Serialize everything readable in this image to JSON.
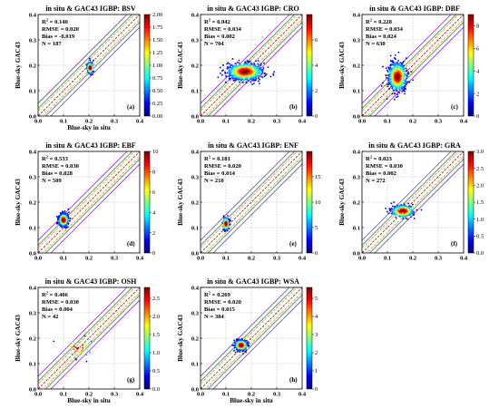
{
  "figure": {
    "colormap": [
      "#00007f",
      "#0000ff",
      "#007fff",
      "#00ffff",
      "#7fff7f",
      "#ffff00",
      "#ff7f00",
      "#ff0000",
      "#7f0000"
    ],
    "line_colors": {
      "one_to_one": "#c00000",
      "inner_bounds": "#d4a000",
      "mid_bounds": "#2e8b57",
      "outer_bounds": "#9b30d9"
    }
  },
  "chart_data": [
    {
      "type": "scatter",
      "title": "in situ & GAC43   IGBP: BSV",
      "xlabel": "Blue-sky in situ",
      "ylabel": "Blue-sky GAC43",
      "xlim": [
        0,
        0.4
      ],
      "ylim": [
        0,
        0.4
      ],
      "xticks": [
        "0.0",
        "0.1",
        "0.2",
        "0.3",
        "0.4"
      ],
      "yticks": [
        "0.0",
        "0.1",
        "0.2",
        "0.3",
        "0.4"
      ],
      "stats": {
        "r2_label": "R",
        "r2_value": "= 0.140",
        "rmse": "RMSE = 0.020",
        "bias": "Bias = -0.019",
        "n": "N = 187"
      },
      "panel_label": "(a)",
      "colorbar": {
        "max": 2.0,
        "ticks": [
          "0.00",
          "0.25",
          "0.50",
          "0.75",
          "1.00",
          "1.25",
          "1.50",
          "1.75",
          "2.00"
        ]
      },
      "cluster": {
        "cx": 0.205,
        "cy": 0.19,
        "sx": 0.006,
        "sy": 0.011,
        "n": 187,
        "peak": 2.0
      }
    },
    {
      "type": "scatter",
      "title": "in situ & GAC43   IGBP: CRO",
      "xlabel": "",
      "ylabel": "Blue-sky GAC43",
      "xlim": [
        0,
        0.4
      ],
      "ylim": [
        0,
        0.4
      ],
      "xticks": [
        "0.0",
        "0.1",
        "0.2",
        "0.3",
        "0.4"
      ],
      "yticks": [
        "0.0",
        "0.1",
        "0.2",
        "0.3",
        "0.4"
      ],
      "stats": {
        "r2_label": "R",
        "r2_value": "= 0.042",
        "rmse": "RMSE = 0.034",
        "bias": "Bias = 0.002",
        "n": "N = 704"
      },
      "panel_label": "(b)",
      "colorbar": {
        "max": 8,
        "ticks": [
          "0",
          "2",
          "4",
          "6"
        ]
      },
      "cluster": {
        "cx": 0.175,
        "cy": 0.175,
        "sx": 0.035,
        "sy": 0.017,
        "n": 704,
        "peak": 8
      }
    },
    {
      "type": "scatter",
      "title": "in situ & GAC43   IGBP: DBF",
      "xlabel": "",
      "ylabel": "Blue-sky GAC43",
      "xlim": [
        0,
        0.4
      ],
      "ylim": [
        0,
        0.4
      ],
      "xticks": [
        "0.0",
        "0.1",
        "0.2",
        "0.3",
        "0.4"
      ],
      "yticks": [
        "0.0",
        "0.1",
        "0.2",
        "0.3",
        "0.4"
      ],
      "stats": {
        "r2_label": "R",
        "r2_value": "= 0.228",
        "rmse": "RMSE = 0.034",
        "bias": "Bias = 0.024",
        "n": "N = 630"
      },
      "panel_label": "(c)",
      "colorbar": {
        "max": 9,
        "ticks": [
          "0",
          "2",
          "4",
          "6",
          "8"
        ]
      },
      "cluster": {
        "cx": 0.14,
        "cy": 0.155,
        "sx": 0.018,
        "sy": 0.028,
        "n": 630,
        "peak": 9
      }
    },
    {
      "type": "scatter",
      "title": "in situ & GAC43   IGBP: EBF",
      "xlabel": "",
      "ylabel": "Blue-sky GAC43",
      "xlim": [
        0,
        0.4
      ],
      "ylim": [
        0,
        0.4
      ],
      "xticks": [
        "0.0",
        "0.1",
        "0.2",
        "0.3",
        "0.4"
      ],
      "yticks": [
        "0.0",
        "0.1",
        "0.2",
        "0.3",
        "0.4"
      ],
      "stats": {
        "r2_label": "R",
        "r2_value": "= 0.533",
        "rmse": "RMSE = 0.030",
        "bias": "Bias = 0.028",
        "n": "N = 509"
      },
      "panel_label": "(d)",
      "colorbar": {
        "max": 10,
        "ticks": [
          "0",
          "2",
          "4",
          "6",
          "8",
          "10"
        ]
      },
      "cluster": {
        "cx": 0.1,
        "cy": 0.13,
        "sx": 0.009,
        "sy": 0.012,
        "n": 509,
        "peak": 10
      }
    },
    {
      "type": "scatter",
      "title": "in situ & GAC43   IGBP: ENF",
      "xlabel": "",
      "ylabel": "Blue-sky GAC43",
      "xlim": [
        0,
        0.4
      ],
      "ylim": [
        0,
        0.4
      ],
      "xticks": [
        "0.0",
        "0.1",
        "0.2",
        "0.3",
        "0.4"
      ],
      "yticks": [
        "0.0",
        "0.1",
        "0.2",
        "0.3",
        "0.4"
      ],
      "stats": {
        "r2_label": "R",
        "r2_value": "= 0.181",
        "rmse": "RMSE = 0.020",
        "bias": "Bias = 0.014",
        "n": "N = 218"
      },
      "panel_label": "(e)",
      "colorbar": {
        "max": 20,
        "ticks": [
          "0",
          "5",
          "10",
          "15"
        ]
      },
      "cluster": {
        "cx": 0.1,
        "cy": 0.115,
        "sx": 0.006,
        "sy": 0.012,
        "n": 218,
        "peak": 20
      }
    },
    {
      "type": "scatter",
      "title": "in situ & GAC43   IGBP: GRA",
      "xlabel": "",
      "ylabel": "Blue-sky GAC43",
      "xlim": [
        0,
        0.4
      ],
      "ylim": [
        0,
        0.4
      ],
      "xticks": [
        "0.0",
        "0.1",
        "0.2",
        "0.3",
        "0.4"
      ],
      "yticks": [
        "0.0",
        "0.1",
        "0.2",
        "0.3",
        "0.4"
      ],
      "stats": {
        "r2_label": "R",
        "r2_value": "= 0.023",
        "rmse": "RMSE = 0.030",
        "bias": "Bias = 0.002",
        "n": "N = 272"
      },
      "panel_label": "(f)",
      "colorbar": {
        "max": 3.0,
        "ticks": [
          "0.0",
          "0.5",
          "1.0",
          "1.5",
          "2.0",
          "2.5",
          "3.0"
        ]
      },
      "cluster": {
        "cx": 0.16,
        "cy": 0.165,
        "sx": 0.022,
        "sy": 0.012,
        "n": 272,
        "peak": 3.0
      }
    },
    {
      "type": "scatter",
      "title": "in situ & GAC43   IGBP: OSH",
      "xlabel": "Blue-sky in situ",
      "ylabel": "Blue-sky GAC43",
      "xlim": [
        0,
        0.4
      ],
      "ylim": [
        0,
        0.4
      ],
      "xticks": [
        "0.0",
        "0.1",
        "0.2",
        "0.3",
        "0.4"
      ],
      "yticks": [
        "0.0",
        "0.1",
        "0.2",
        "0.3",
        "0.4"
      ],
      "stats": {
        "r2_label": "R",
        "r2_value": "= 0.406",
        "rmse": "RMSE = 0.030",
        "bias": "Bias = 0.004",
        "n": "N = 42"
      },
      "panel_label": "(g)",
      "colorbar": {
        "max": 2.8,
        "ticks": [
          "0.0",
          "0.5",
          "1.0",
          "1.5",
          "2.0",
          "2.5"
        ]
      },
      "cluster": {
        "cx": 0.16,
        "cy": 0.165,
        "sx": 0.03,
        "sy": 0.022,
        "n": 42,
        "peak": 2.8
      }
    },
    {
      "type": "scatter",
      "title": "in situ & GAC43   IGBP: WSA",
      "xlabel": "Blue-sky in situ",
      "ylabel": "Blue-sky GAC43",
      "xlim": [
        0,
        0.4
      ],
      "ylim": [
        0,
        0.4
      ],
      "xticks": [
        "0.0",
        "0.1",
        "0.2",
        "0.3",
        "0.4"
      ],
      "yticks": [
        "0.0",
        "0.1",
        "0.2",
        "0.3",
        "0.4"
      ],
      "stats": {
        "r2_label": "R",
        "r2_value": "= 0.269",
        "rmse": "RMSE = 0.020",
        "bias": "Bias = 0.015",
        "n": "N = 384"
      },
      "panel_label": "(h)",
      "colorbar": {
        "max": 5.6,
        "ticks": [
          "0",
          "1",
          "2",
          "3",
          "4",
          "5"
        ]
      },
      "cluster": {
        "cx": 0.16,
        "cy": 0.172,
        "sx": 0.012,
        "sy": 0.01,
        "n": 384,
        "peak": 5.6
      }
    }
  ]
}
